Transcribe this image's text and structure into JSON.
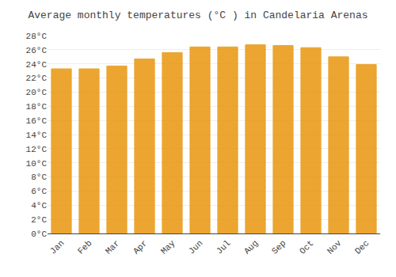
{
  "chart_data": {
    "type": "bar",
    "title": "Average monthly temperatures (°C ) in Candelaria Arenas",
    "categories": [
      "Jan",
      "Feb",
      "Mar",
      "Apr",
      "May",
      "Jun",
      "Jul",
      "Aug",
      "Sep",
      "Oct",
      "Nov",
      "Dec"
    ],
    "values": [
      23.3,
      23.3,
      23.7,
      24.7,
      25.6,
      26.4,
      26.4,
      26.7,
      26.6,
      26.3,
      25.0,
      23.9
    ],
    "color": "#E8960C",
    "ylim": [
      0,
      28
    ],
    "yticks": [
      {
        "value": 0,
        "label": "0°C"
      },
      {
        "value": 2,
        "label": "2°C"
      },
      {
        "value": 4,
        "label": "4°C"
      },
      {
        "value": 6,
        "label": "6°C"
      },
      {
        "value": 8,
        "label": "8°C"
      },
      {
        "value": 10,
        "label": "10°C"
      },
      {
        "value": 12,
        "label": "12°C"
      },
      {
        "value": 14,
        "label": "14°C"
      },
      {
        "value": 16,
        "label": "16°C"
      },
      {
        "value": 18,
        "label": "18°C"
      },
      {
        "value": 20,
        "label": "20°C"
      },
      {
        "value": 22,
        "label": "22°C"
      },
      {
        "value": 24,
        "label": "24°C"
      },
      {
        "value": 26,
        "label": "26°C"
      },
      {
        "value": 28,
        "label": "28°C"
      }
    ],
    "grid": true
  }
}
